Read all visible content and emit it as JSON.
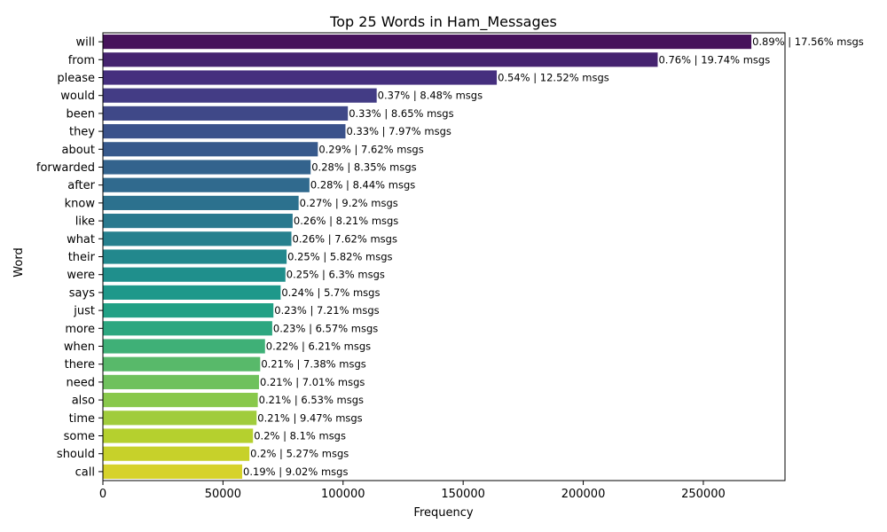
{
  "chart_data": {
    "type": "bar",
    "orientation": "horizontal",
    "title": "Top 25 Words in Ham_Messages",
    "xlabel": "Frequency",
    "ylabel": "Word",
    "xlim": [
      0,
      284000
    ],
    "xticks": [
      0,
      50000,
      100000,
      150000,
      200000,
      250000
    ],
    "xtick_labels": [
      "0",
      "50000",
      "100000",
      "150000",
      "200000",
      "250000"
    ],
    "grid": false,
    "colormap": "viridis",
    "colors": [
      "#46125b",
      "#45236f",
      "#452f7e",
      "#433c85",
      "#3f4888",
      "#3b528b",
      "#37598c",
      "#33638d",
      "#306a8e",
      "#2c718e",
      "#29798e",
      "#26808e",
      "#22888d",
      "#1f8f8c",
      "#1e988a",
      "#21a085",
      "#2da780",
      "#3fb077",
      "#58b96a",
      "#6fc15d",
      "#88c84b",
      "#a0cc3c",
      "#b5d02e",
      "#c7d12a",
      "#d6d22b"
    ],
    "categories": [
      "will",
      "from",
      "please",
      "would",
      "been",
      "they",
      "about",
      "forwarded",
      "after",
      "know",
      "like",
      "what",
      "their",
      "were",
      "says",
      "just",
      "more",
      "when",
      "there",
      "need",
      "also",
      "time",
      "some",
      "should",
      "call"
    ],
    "values": [
      270000,
      231000,
      164000,
      114000,
      102000,
      101000,
      89500,
      86500,
      86000,
      81500,
      79000,
      78500,
      76500,
      76000,
      74000,
      71000,
      70500,
      67500,
      65500,
      65000,
      64500,
      64000,
      62500,
      61000,
      58000
    ],
    "labels": [
      "0.89% | 17.56% msgs",
      "0.76% | 19.74% msgs",
      "0.54% | 12.52% msgs",
      "0.37% | 8.48% msgs",
      "0.33% | 8.65% msgs",
      "0.33% | 7.97% msgs",
      "0.29% | 7.62% msgs",
      "0.28% | 8.35% msgs",
      "0.28% | 8.44% msgs",
      "0.27% | 9.2% msgs",
      "0.26% | 8.21% msgs",
      "0.26% | 7.62% msgs",
      "0.25% | 5.82% msgs",
      "0.25% | 6.3% msgs",
      "0.24% | 5.7% msgs",
      "0.23% | 7.21% msgs",
      "0.23% | 6.57% msgs",
      "0.22% | 6.21% msgs",
      "0.21% | 7.38% msgs",
      "0.21% | 7.01% msgs",
      "0.21% | 6.53% msgs",
      "0.21% | 9.47% msgs",
      "0.2% | 8.1% msgs",
      "0.2% | 5.27% msgs",
      "0.19% | 9.02% msgs"
    ]
  }
}
